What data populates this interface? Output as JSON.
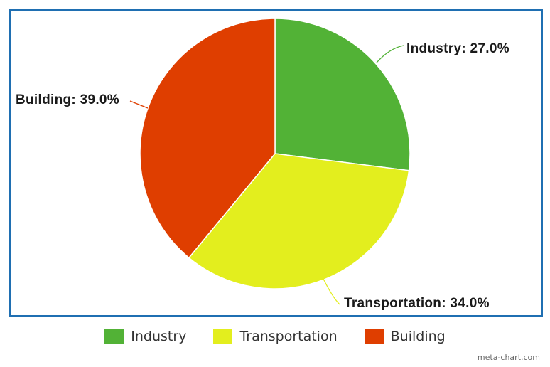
{
  "chart_data": {
    "type": "pie",
    "title": "",
    "categories": [
      "Industry",
      "Transportation",
      "Building"
    ],
    "values": [
      27.0,
      34.0,
      39.0
    ],
    "unit": "%",
    "colors": [
      "#52b236",
      "#e3ee1e",
      "#df3e00"
    ],
    "start_angle": "12 o'clock, clockwise",
    "data_labels": [
      "Industry: 27.0%",
      "Transportation: 34.0%",
      "Building: 39.0%"
    ],
    "legend_position": "bottom"
  },
  "labels": {
    "industry": "Industry: 27.0%",
    "transportation": "Transportation: 34.0%",
    "building": "Building: 39.0%"
  },
  "legend": {
    "items": [
      {
        "label": "Industry",
        "color": "#52b236"
      },
      {
        "label": "Transportation",
        "color": "#e3ee1e"
      },
      {
        "label": "Building",
        "color": "#df3e00"
      }
    ]
  },
  "credit": "meta-chart.com"
}
